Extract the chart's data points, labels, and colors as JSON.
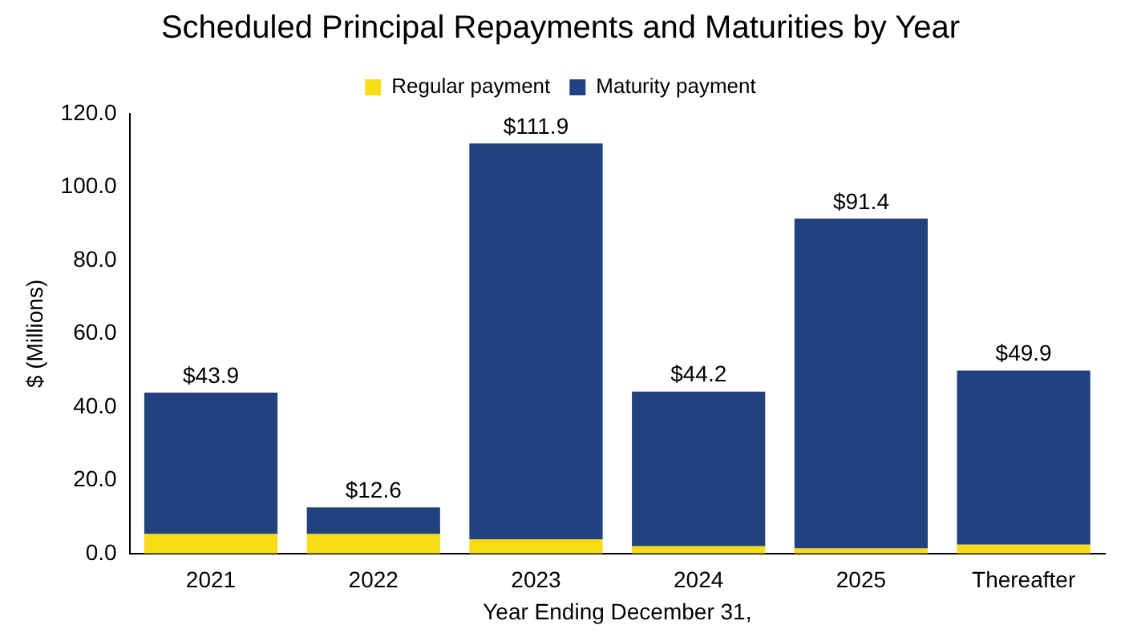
{
  "chart_data": {
    "type": "bar",
    "title": "Scheduled Principal Repayments and Maturities by Year",
    "xlabel": "Year Ending December 31,",
    "ylabel": "$ (Millions)",
    "categories": [
      "2021",
      "2022",
      "2023",
      "2024",
      "2025",
      "Thereafter"
    ],
    "stacked": true,
    "series": [
      {
        "name": "Regular payment",
        "color": "#f7dc15",
        "values": [
          5.3,
          5.3,
          3.9,
          2.0,
          1.4,
          2.4
        ]
      },
      {
        "name": "Maturity payment",
        "color": "#22427f",
        "values": [
          38.6,
          7.3,
          108.0,
          42.2,
          90.0,
          47.5
        ]
      }
    ],
    "totals": [
      "$43.9",
      "$12.6",
      "$111.9",
      "$44.2",
      "$91.4",
      "$49.9"
    ],
    "ylim": [
      0,
      120
    ],
    "yticks": [
      {
        "value": 0,
        "label": "0.0"
      },
      {
        "value": 20,
        "label": "20.0"
      },
      {
        "value": 40,
        "label": "40.0"
      },
      {
        "value": 60,
        "label": "60.0"
      },
      {
        "value": 80,
        "label": "80.0"
      },
      {
        "value": 100,
        "label": "100.0"
      },
      {
        "value": 120,
        "label": "120.0"
      }
    ],
    "grid": false,
    "legend": "top"
  }
}
